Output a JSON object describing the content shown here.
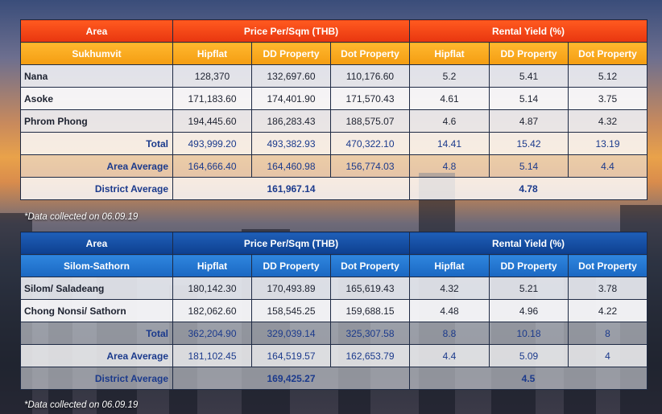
{
  "note": "*Data collected on 06.09.19",
  "tables": [
    {
      "header": {
        "area": "Area",
        "price_group": "Price Per/Sqm (THB)",
        "yield_group": "Rental Yield (%)",
        "district": "Sukhumvit",
        "cols": [
          "Hipflat",
          "DD Property",
          "Dot Property",
          "Hipflat",
          "DD Property",
          "Dot Property"
        ]
      },
      "rows": [
        {
          "name": "Nana",
          "values": [
            "128,370",
            "132,697.60",
            "110,176.60",
            "5.2",
            "5.41",
            "5.12"
          ]
        },
        {
          "name": "Asoke",
          "values": [
            "171,183.60",
            "174,401.90",
            "171,570.43",
            "4.61",
            "5.14",
            "3.75"
          ]
        },
        {
          "name": "Phrom Phong",
          "values": [
            "194,445.60",
            "186,283.43",
            "188,575.07",
            "4.6",
            "4.87",
            "4.32"
          ]
        }
      ],
      "total": {
        "label": "Total",
        "values": [
          "493,999.20",
          "493,382.93",
          "470,322.10",
          "14.41",
          "15.42",
          "13.19"
        ]
      },
      "area_average": {
        "label": "Area Average",
        "values": [
          "164,666.40",
          "164,460.98",
          "156,774.03",
          "4.8",
          "5.14",
          "4.4"
        ]
      },
      "district_average": {
        "label": "District Average",
        "price": "161,967.14",
        "yield": "4.78"
      }
    },
    {
      "header": {
        "area": "Area",
        "price_group": "Price Per/Sqm (THB)",
        "yield_group": "Rental Yield (%)",
        "district": "Silom-Sathorn",
        "cols": [
          "Hipflat",
          "DD Property",
          "Dot Property",
          "Hipflat",
          "DD Property",
          "Dot Property"
        ]
      },
      "rows": [
        {
          "name": "Silom/ Saladeang",
          "values": [
            "180,142.30",
            "170,493.89",
            "165,619.43",
            "4.32",
            "5.21",
            "3.78"
          ]
        },
        {
          "name": "Chong Nonsi/ Sathorn",
          "values": [
            "182,062.60",
            "158,545.25",
            "159,688.15",
            "4.48",
            "4.96",
            "4.22"
          ]
        }
      ],
      "total": {
        "label": "Total",
        "values": [
          "362,204.90",
          "329,039.14",
          "325,307.58",
          "8.8",
          "10.18",
          "8"
        ]
      },
      "area_average": {
        "label": "Area Average",
        "values": [
          "181,102.45",
          "164,519.57",
          "162,653.79",
          "4.4",
          "5.09",
          "4"
        ]
      },
      "district_average": {
        "label": "District Average",
        "price": "169,425.27",
        "yield": "4.5"
      }
    }
  ],
  "colors": {
    "sukhumvit_header": "#e8350f",
    "sukhumvit_subheader": "#f49d12",
    "silom_header": "#0d3f8f",
    "silom_subheader": "#1a67c2",
    "summary_text": "#1b3a8c"
  }
}
